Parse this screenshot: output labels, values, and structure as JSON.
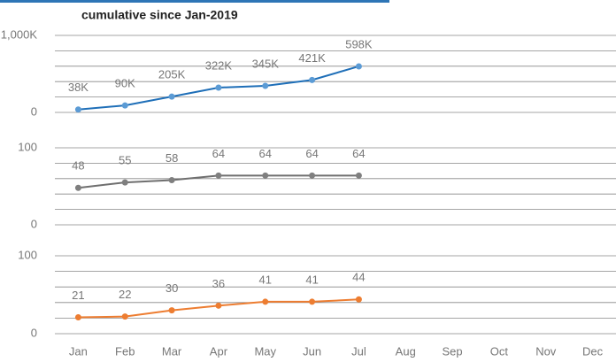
{
  "chart_data": [
    {
      "type": "line",
      "title": "cumulative since Jan-2019",
      "categories": [
        "Jan",
        "Feb",
        "Mar",
        "Apr",
        "May",
        "Jun",
        "Jul",
        "Aug",
        "Sep",
        "Oct",
        "Nov",
        "Dec"
      ],
      "ylim": [
        0,
        1000
      ],
      "yticks": [
        0,
        {
          "value": 1000,
          "label": "1,000K"
        }
      ],
      "minor_grid": [
        200,
        400,
        600,
        800
      ],
      "series": [
        {
          "color": "#1f6fb8",
          "marker_color": "#5b9bd5",
          "values": [
            38,
            90,
            205,
            322,
            345,
            421,
            598,
            null,
            null,
            null,
            null,
            null
          ],
          "value_labels": [
            "38K",
            "90K",
            "205K",
            "322K",
            "345K",
            "421K",
            "598K",
            null,
            null,
            null,
            null,
            null
          ]
        }
      ]
    },
    {
      "type": "line",
      "categories": [
        "Jan",
        "Feb",
        "Mar",
        "Apr",
        "May",
        "Jun",
        "Jul",
        "Aug",
        "Sep",
        "Oct",
        "Nov",
        "Dec"
      ],
      "ylim": [
        0,
        100
      ],
      "yticks": [
        0,
        100
      ],
      "minor_grid": [
        20,
        40,
        60,
        80
      ],
      "series": [
        {
          "color": "#6f6f6f",
          "marker_color": "#7f7f7f",
          "values": [
            48,
            55,
            58,
            64,
            64,
            64,
            64,
            null,
            null,
            null,
            null,
            null
          ]
        }
      ]
    },
    {
      "type": "line",
      "categories": [
        "Jan",
        "Feb",
        "Mar",
        "Apr",
        "May",
        "Jun",
        "Jul",
        "Aug",
        "Sep",
        "Oct",
        "Nov",
        "Dec"
      ],
      "ylim": [
        0,
        100
      ],
      "yticks": [
        0,
        100
      ],
      "minor_grid": [
        20,
        40,
        60,
        80
      ],
      "series": [
        {
          "color": "#ed7d31",
          "marker_color": "#ed7d31",
          "values": [
            21,
            22,
            30,
            36,
            41,
            41,
            44,
            null,
            null,
            null,
            null,
            null
          ]
        }
      ]
    }
  ]
}
